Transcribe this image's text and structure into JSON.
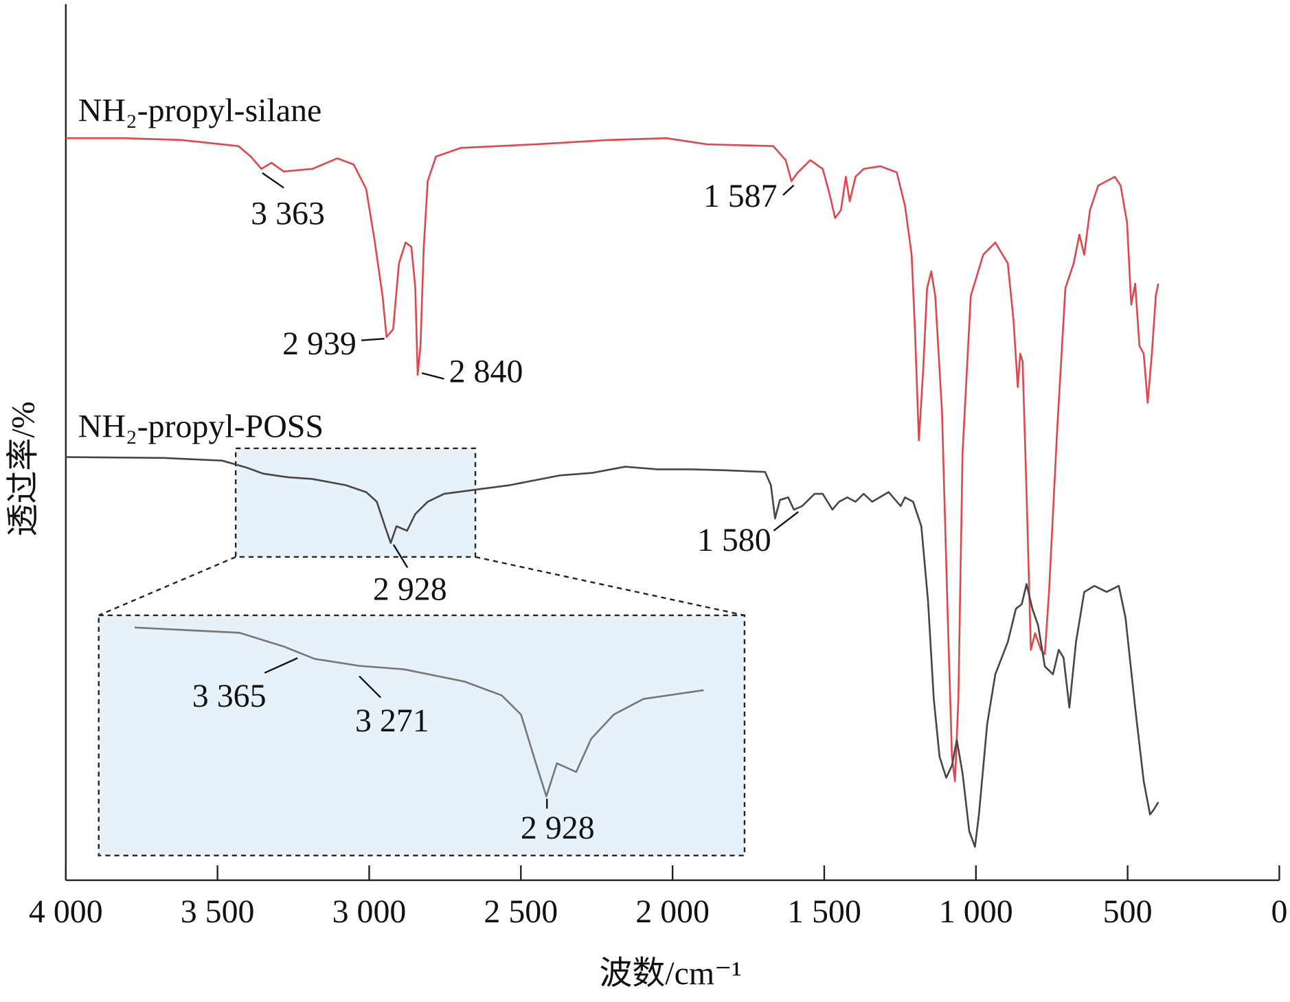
{
  "chart_data": {
    "type": "line",
    "xlabel": "波数/cm⁻¹",
    "ylabel": "透过率/%",
    "xlim": [
      4000,
      0
    ],
    "ylim": [
      0,
      100
    ],
    "xticks": [
      {
        "value": 4000,
        "label": "4 000"
      },
      {
        "value": 3500,
        "label": "3 500"
      },
      {
        "value": 3000,
        "label": "3 000"
      },
      {
        "value": 2500,
        "label": "2 500"
      },
      {
        "value": 2000,
        "label": "2 000"
      },
      {
        "value": 1500,
        "label": "1 500"
      },
      {
        "value": 1000,
        "label": "1 000"
      },
      500,
      0
    ],
    "series": [
      {
        "name": "NH₂-propyl-silane",
        "color": "#e0474c",
        "x": [
          4000,
          3810,
          3620,
          3431,
          3390,
          3355,
          3322,
          3282,
          3187,
          3105,
          3051,
          3010,
          2983,
          2956,
          2943,
          2921,
          2902,
          2880,
          2861,
          2848,
          2840,
          2831,
          2820,
          2807,
          2780,
          2698,
          2454,
          2210,
          2020,
          1885,
          1668,
          1627,
          1608,
          1587,
          1546,
          1505,
          1483,
          1464,
          1445,
          1429,
          1416,
          1397,
          1370,
          1315,
          1261,
          1234,
          1212,
          1201,
          1188,
          1174,
          1161,
          1147,
          1134,
          1112,
          1093,
          1079,
          1069,
          1058,
          1044,
          1017,
          976,
          936,
          895,
          876,
          862,
          854,
          846,
          833,
          819,
          805,
          786,
          773,
          759,
          732,
          705,
          678,
          659,
          643,
          624,
          597,
          542,
          523,
          502,
          488,
          475,
          461,
          447,
          434,
          420,
          407,
          399
        ],
        "values": [
          84.7,
          84.7,
          84.5,
          83.8,
          82.6,
          81.2,
          81.9,
          80.9,
          81.2,
          82.4,
          81.7,
          78.9,
          73.2,
          66.7,
          62.0,
          62.9,
          70.4,
          72.8,
          72.3,
          67.6,
          57.7,
          61.0,
          72.3,
          79.8,
          82.6,
          83.6,
          84.0,
          84.5,
          84.7,
          84.0,
          83.8,
          82.2,
          79.8,
          80.8,
          82.2,
          81.2,
          78.4,
          75.6,
          76.5,
          80.3,
          77.5,
          80.3,
          81.2,
          81.5,
          80.8,
          77.0,
          71.4,
          62.9,
          50.2,
          58.2,
          67.6,
          69.5,
          66.7,
          53.5,
          30.0,
          14.1,
          11.3,
          20.7,
          48.8,
          66.7,
          71.4,
          72.8,
          70.4,
          63.8,
          56.3,
          60.1,
          59.2,
          44.1,
          26.3,
          28.2,
          26.3,
          25.8,
          32.9,
          51.6,
          67.6,
          70.4,
          73.7,
          71.4,
          76.5,
          79.3,
          80.3,
          79.3,
          75.1,
          65.7,
          68.1,
          61.0,
          60.1,
          54.5,
          60.1,
          66.7,
          68.1
        ]
      },
      {
        "name": "NH₂-propyl-POSS",
        "color": "#4a4444",
        "x": [
          4000,
          3675,
          3485,
          3404,
          3349,
          3268,
          3187,
          3078,
          3010,
          2975,
          2948,
          2929,
          2910,
          2875,
          2848,
          2807,
          2753,
          2644,
          2536,
          2373,
          2265,
          2156,
          2048,
          1939,
          1831,
          1695,
          1676,
          1662,
          1646,
          1619,
          1600,
          1573,
          1532,
          1505,
          1473,
          1451,
          1424,
          1397,
          1370,
          1342,
          1288,
          1248,
          1234,
          1207,
          1180,
          1158,
          1139,
          1120,
          1098,
          1079,
          1063,
          1044,
          1022,
          1003,
          990,
          963,
          936,
          895,
          868,
          849,
          833,
          814,
          795,
          773,
          746,
          727,
          711,
          692,
          670,
          643,
          610,
          569,
          529,
          507,
          475,
          447,
          426,
          415,
          399
        ],
        "values": [
          48.3,
          48.2,
          47.9,
          47.1,
          46.4,
          46.0,
          45.8,
          45.1,
          44.3,
          43.2,
          40.4,
          38.5,
          40.4,
          39.9,
          41.8,
          43.2,
          44.1,
          44.6,
          45.1,
          46.2,
          46.5,
          47.2,
          46.9,
          46.9,
          46.8,
          46.6,
          45.1,
          41.3,
          43.4,
          43.7,
          42.3,
          42.7,
          44.1,
          44.1,
          42.3,
          43.2,
          43.7,
          43.2,
          44.1,
          43.2,
          44.3,
          42.7,
          43.7,
          43.2,
          40.4,
          31.9,
          20.7,
          14.1,
          11.7,
          13.1,
          16.0,
          12.2,
          5.6,
          3.8,
          7.5,
          17.8,
          23.5,
          27.2,
          31.0,
          31.5,
          33.8,
          31.0,
          29.1,
          24.4,
          23.5,
          26.3,
          25.4,
          19.7,
          27.2,
          32.9,
          33.6,
          32.9,
          33.6,
          30.0,
          19.7,
          11.3,
          7.5,
          8.0,
          8.9
        ]
      }
    ],
    "annotations": [
      {
        "text": "3 363",
        "x": 3363,
        "y": 81.2
      },
      {
        "text": "2 939",
        "x": 2939,
        "y": 62.0
      },
      {
        "text": "2 840",
        "x": 2840,
        "y": 57.7
      },
      {
        "text": "1 587",
        "x": 1587,
        "y": 79.8
      },
      {
        "text": "1 580",
        "x": 1580,
        "y": 41.3
      },
      {
        "text": "2 928",
        "x": 2928,
        "y": 38.5
      }
    ],
    "inset": {
      "source_xlim": [
        3440,
        2650
      ],
      "source_ylim": [
        36.9,
        49.3
      ],
      "xlim": [
        3740,
        2570
      ],
      "ylim": [
        35.1,
        48.9
      ],
      "series": 1,
      "color": "#777777",
      "annotations": [
        {
          "text": "3 365",
          "x": 3365,
          "y": 46.3
        },
        {
          "text": "3 271",
          "x": 3271,
          "y": 45.5
        },
        {
          "text": "2 928",
          "x": 2928,
          "y": 38.5
        }
      ]
    }
  }
}
